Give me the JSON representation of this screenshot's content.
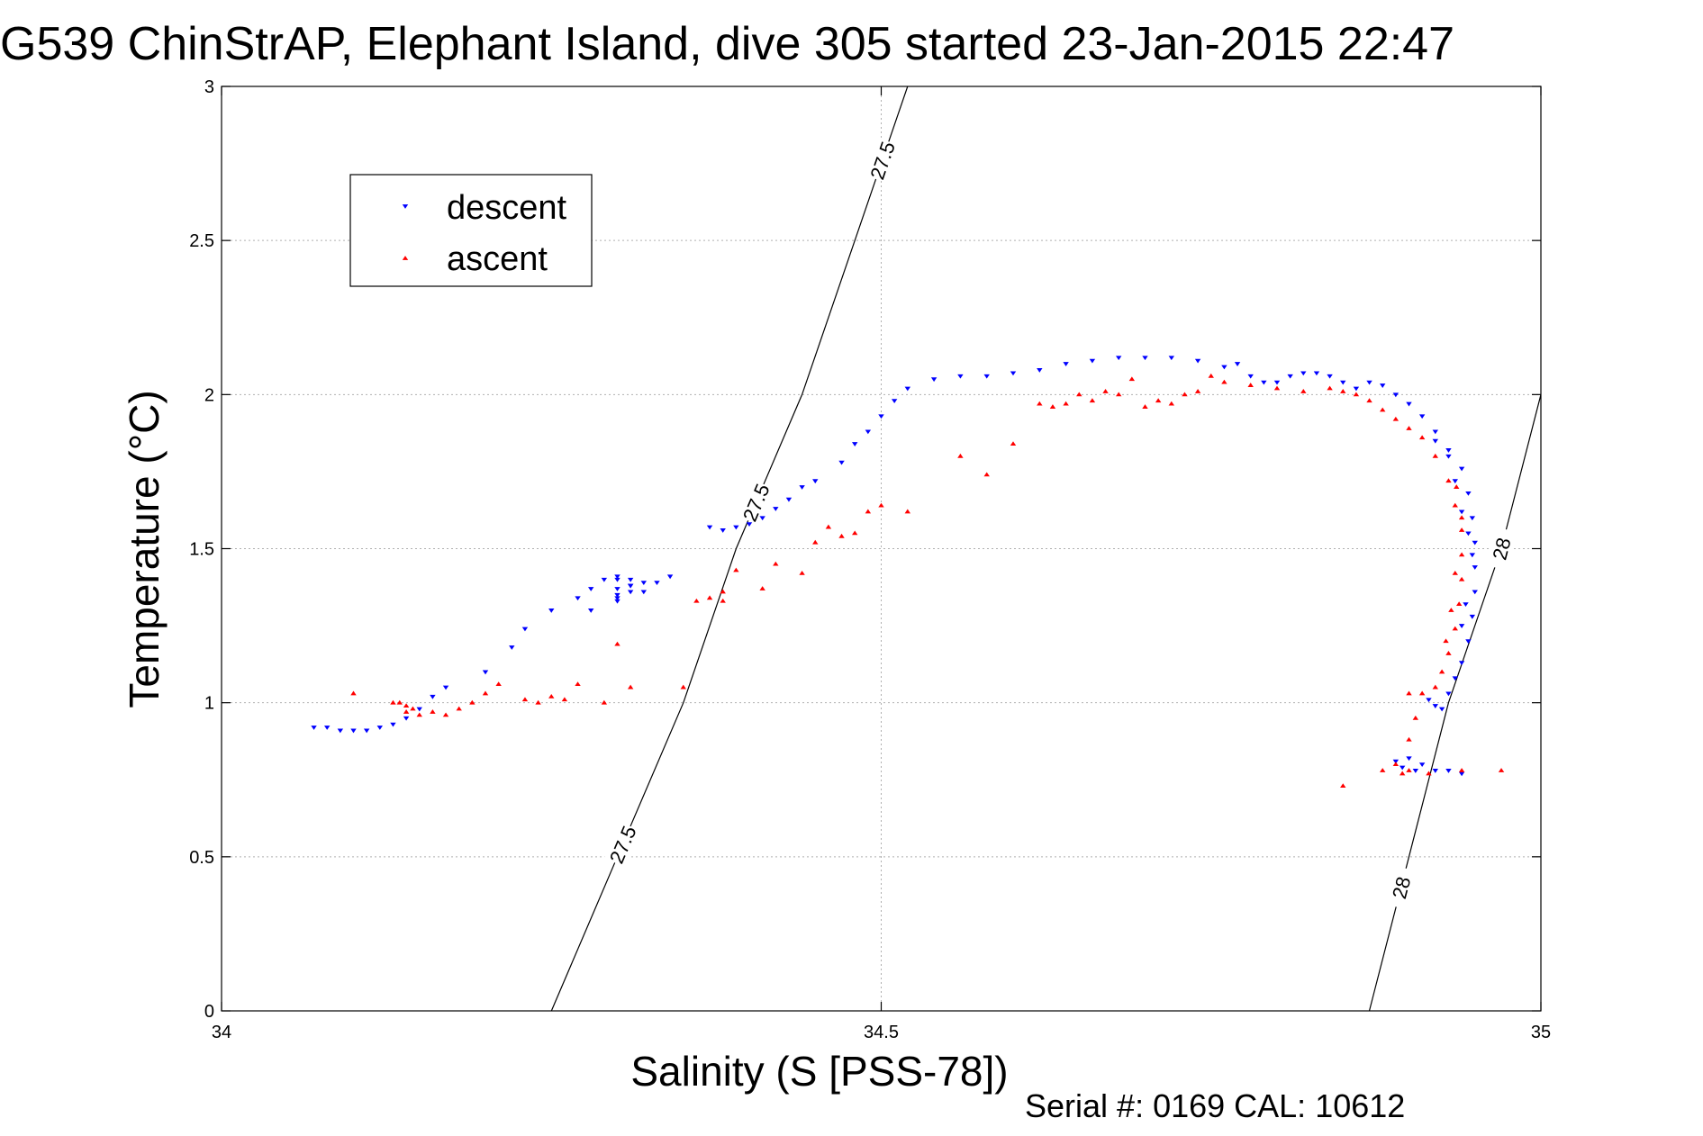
{
  "chart_data": {
    "type": "scatter",
    "title": "G539 ChinStrAP, Elephant Island, dive 305 started 23-Jan-2015 22:47",
    "xlabel": "Salinity (S [PSS-78])",
    "ylabel": "Temperature (°C)",
    "xlim": [
      34,
      35
    ],
    "ylim": [
      0,
      3
    ],
    "x_ticks": [
      "34",
      "34.5",
      "35"
    ],
    "y_ticks": [
      "0",
      "0.5",
      "1",
      "1.5",
      "2",
      "2.5",
      "3"
    ],
    "grid": true,
    "legend_position": "top-left",
    "series": [
      {
        "name": "descent",
        "color": "#0000ff",
        "marker": "triangle-down",
        "points": [
          [
            34.07,
            0.92
          ],
          [
            34.08,
            0.92
          ],
          [
            34.09,
            0.91
          ],
          [
            34.1,
            0.91
          ],
          [
            34.11,
            0.91
          ],
          [
            34.12,
            0.92
          ],
          [
            34.13,
            0.93
          ],
          [
            34.14,
            0.95
          ],
          [
            34.15,
            0.98
          ],
          [
            34.16,
            1.02
          ],
          [
            34.17,
            1.05
          ],
          [
            34.2,
            1.1
          ],
          [
            34.22,
            1.18
          ],
          [
            34.23,
            1.24
          ],
          [
            34.25,
            1.3
          ],
          [
            34.27,
            1.34
          ],
          [
            34.28,
            1.37
          ],
          [
            34.29,
            1.4
          ],
          [
            34.31,
            1.38
          ],
          [
            34.32,
            1.39
          ],
          [
            34.33,
            1.39
          ],
          [
            34.34,
            1.41
          ],
          [
            34.3,
            1.41
          ],
          [
            34.31,
            1.36
          ],
          [
            34.3,
            1.37
          ],
          [
            34.31,
            1.4
          ],
          [
            34.32,
            1.36
          ],
          [
            34.3,
            1.34
          ],
          [
            34.28,
            1.3
          ],
          [
            34.3,
            1.35
          ],
          [
            34.31,
            1.38
          ],
          [
            34.3,
            1.33
          ],
          [
            34.3,
            1.4
          ],
          [
            34.37,
            1.57
          ],
          [
            34.38,
            1.56
          ],
          [
            34.39,
            1.57
          ],
          [
            34.4,
            1.58
          ],
          [
            34.41,
            1.6
          ],
          [
            34.42,
            1.63
          ],
          [
            34.43,
            1.66
          ],
          [
            34.44,
            1.7
          ],
          [
            34.45,
            1.72
          ],
          [
            34.47,
            1.78
          ],
          [
            34.48,
            1.84
          ],
          [
            34.49,
            1.88
          ],
          [
            34.5,
            1.93
          ],
          [
            34.51,
            1.98
          ],
          [
            34.52,
            2.02
          ],
          [
            34.54,
            2.05
          ],
          [
            34.56,
            2.06
          ],
          [
            34.58,
            2.06
          ],
          [
            34.6,
            2.07
          ],
          [
            34.62,
            2.08
          ],
          [
            34.64,
            2.1
          ],
          [
            34.66,
            2.11
          ],
          [
            34.68,
            2.12
          ],
          [
            34.7,
            2.12
          ],
          [
            34.72,
            2.12
          ],
          [
            34.74,
            2.11
          ],
          [
            34.76,
            2.09
          ],
          [
            34.77,
            2.1
          ],
          [
            34.78,
            2.06
          ],
          [
            34.79,
            2.04
          ],
          [
            34.8,
            2.04
          ],
          [
            34.81,
            2.06
          ],
          [
            34.82,
            2.07
          ],
          [
            34.83,
            2.07
          ],
          [
            34.84,
            2.06
          ],
          [
            34.85,
            2.04
          ],
          [
            34.86,
            2.02
          ],
          [
            34.87,
            2.04
          ],
          [
            34.88,
            2.03
          ],
          [
            34.89,
            2.0
          ],
          [
            34.9,
            1.97
          ],
          [
            34.91,
            1.93
          ],
          [
            34.92,
            1.88
          ],
          [
            34.93,
            1.82
          ],
          [
            34.94,
            1.76
          ],
          [
            34.945,
            1.68
          ],
          [
            34.948,
            1.6
          ],
          [
            34.95,
            1.52
          ],
          [
            34.95,
            1.44
          ],
          [
            34.95,
            1.36
          ],
          [
            34.948,
            1.28
          ],
          [
            34.945,
            1.2
          ],
          [
            34.94,
            1.13
          ],
          [
            34.935,
            1.08
          ],
          [
            34.93,
            1.03
          ],
          [
            34.925,
            0.98
          ],
          [
            34.92,
            0.99
          ],
          [
            34.915,
            1.01
          ],
          [
            34.9,
            0.82
          ],
          [
            34.91,
            0.8
          ],
          [
            34.92,
            0.78
          ],
          [
            34.93,
            0.78
          ],
          [
            34.94,
            0.77
          ],
          [
            34.89,
            0.81
          ],
          [
            34.895,
            0.79
          ],
          [
            34.905,
            0.78
          ],
          [
            34.945,
            1.55
          ],
          [
            34.948,
            1.48
          ],
          [
            34.943,
            1.32
          ],
          [
            34.94,
            1.25
          ],
          [
            34.94,
            1.62
          ],
          [
            34.935,
            1.72
          ],
          [
            34.92,
            1.85
          ],
          [
            34.93,
            1.8
          ]
        ]
      },
      {
        "name": "ascent",
        "color": "#ff0000",
        "marker": "triangle-up",
        "points": [
          [
            34.1,
            1.03
          ],
          [
            34.13,
            1.0
          ],
          [
            34.135,
            1.0
          ],
          [
            34.14,
            0.99
          ],
          [
            34.145,
            0.98
          ],
          [
            34.15,
            0.96
          ],
          [
            34.14,
            0.97
          ],
          [
            34.16,
            0.97
          ],
          [
            34.17,
            0.96
          ],
          [
            34.18,
            0.98
          ],
          [
            34.19,
            1.0
          ],
          [
            34.2,
            1.03
          ],
          [
            34.21,
            1.06
          ],
          [
            34.23,
            1.01
          ],
          [
            34.25,
            1.02
          ],
          [
            34.26,
            1.01
          ],
          [
            34.24,
            1.0
          ],
          [
            34.27,
            1.06
          ],
          [
            34.29,
            1.0
          ],
          [
            34.3,
            1.19
          ],
          [
            34.31,
            1.05
          ],
          [
            34.35,
            1.05
          ],
          [
            34.36,
            1.33
          ],
          [
            34.37,
            1.34
          ],
          [
            34.38,
            1.36
          ],
          [
            34.39,
            1.43
          ],
          [
            34.38,
            1.33
          ],
          [
            34.41,
            1.37
          ],
          [
            34.42,
            1.45
          ],
          [
            34.44,
            1.42
          ],
          [
            34.45,
            1.52
          ],
          [
            34.46,
            1.57
          ],
          [
            34.47,
            1.54
          ],
          [
            34.48,
            1.55
          ],
          [
            34.49,
            1.62
          ],
          [
            34.5,
            1.64
          ],
          [
            34.52,
            1.62
          ],
          [
            34.56,
            1.8
          ],
          [
            34.58,
            1.74
          ],
          [
            34.6,
            1.84
          ],
          [
            34.62,
            1.97
          ],
          [
            34.63,
            1.96
          ],
          [
            34.64,
            1.97
          ],
          [
            34.65,
            2.0
          ],
          [
            34.66,
            1.98
          ],
          [
            34.67,
            2.01
          ],
          [
            34.68,
            2.0
          ],
          [
            34.69,
            2.05
          ],
          [
            34.7,
            1.96
          ],
          [
            34.71,
            1.98
          ],
          [
            34.72,
            1.97
          ],
          [
            34.73,
            2.0
          ],
          [
            34.74,
            2.01
          ],
          [
            34.75,
            2.06
          ],
          [
            34.76,
            2.04
          ],
          [
            34.78,
            2.03
          ],
          [
            34.8,
            2.02
          ],
          [
            34.82,
            2.01
          ],
          [
            34.84,
            2.02
          ],
          [
            34.85,
            2.01
          ],
          [
            34.86,
            2.0
          ],
          [
            34.87,
            1.98
          ],
          [
            34.88,
            1.95
          ],
          [
            34.89,
            1.92
          ],
          [
            34.9,
            1.89
          ],
          [
            34.91,
            1.86
          ],
          [
            34.92,
            1.8
          ],
          [
            34.93,
            1.72
          ],
          [
            34.935,
            1.64
          ],
          [
            34.94,
            1.56
          ],
          [
            34.94,
            1.48
          ],
          [
            34.94,
            1.4
          ],
          [
            34.938,
            1.32
          ],
          [
            34.935,
            1.24
          ],
          [
            34.93,
            1.16
          ],
          [
            34.925,
            1.1
          ],
          [
            34.92,
            1.05
          ],
          [
            34.91,
            1.03
          ],
          [
            34.9,
            1.03
          ],
          [
            34.905,
            0.95
          ],
          [
            34.9,
            0.88
          ],
          [
            34.89,
            0.8
          ],
          [
            34.9,
            0.78
          ],
          [
            34.88,
            0.78
          ],
          [
            34.97,
            0.78
          ],
          [
            34.94,
            0.78
          ],
          [
            34.85,
            0.73
          ],
          [
            34.915,
            0.77
          ],
          [
            34.895,
            0.77
          ],
          [
            34.935,
            1.42
          ],
          [
            34.932,
            1.3
          ],
          [
            34.928,
            1.2
          ],
          [
            34.936,
            1.7
          ],
          [
            34.94,
            1.6
          ]
        ]
      }
    ],
    "isopycnals": [
      {
        "label": "27.5",
        "points": [
          [
            34.25,
            0.0
          ],
          [
            34.3,
            0.5
          ],
          [
            34.35,
            1.0
          ],
          [
            34.39,
            1.5
          ],
          [
            34.44,
            2.0
          ],
          [
            34.48,
            2.5
          ],
          [
            34.52,
            3.0
          ]
        ]
      },
      {
        "label": "28",
        "points": [
          [
            34.87,
            0.0
          ],
          [
            34.9,
            0.5
          ],
          [
            34.93,
            1.0
          ],
          [
            34.97,
            1.5
          ],
          [
            35.0,
            2.0
          ]
        ]
      }
    ]
  },
  "footer": {
    "serial_text": "Serial #: 0169 CAL: 10612"
  }
}
